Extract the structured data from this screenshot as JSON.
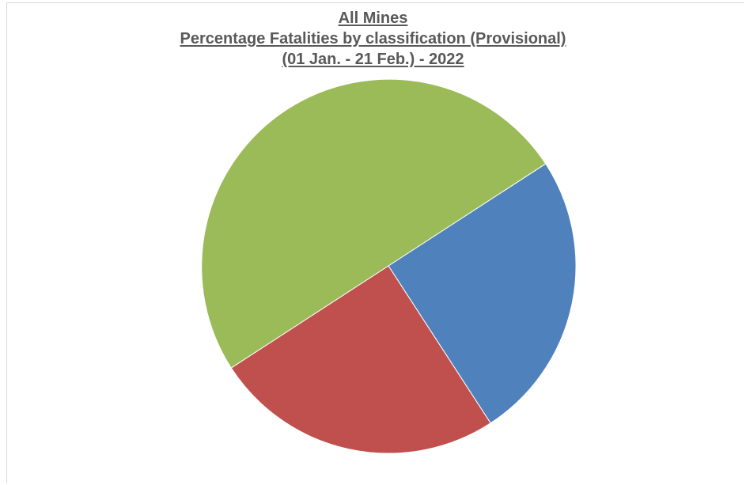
{
  "chart_data": {
    "type": "pie",
    "title_lines": [
      "All Mines",
      "Percentage Fatalities by classification (Provisional)",
      "(01 Jan. -  21 Feb.) - 2022"
    ],
    "slices": [
      {
        "value": 25,
        "color": "#4f81bd"
      },
      {
        "value": 25,
        "color": "#c0504d"
      },
      {
        "value": 50,
        "color": "#9bbb59"
      }
    ],
    "start_angle_deg": 327,
    "direction": "clockwise",
    "legend": "none",
    "data_labels": "none"
  }
}
